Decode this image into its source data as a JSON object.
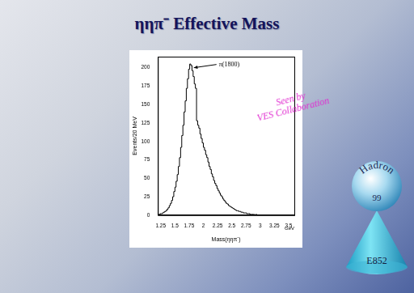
{
  "chart_data": {
    "type": "histogram",
    "title": "ηηπ⁻ Effective Mass",
    "x_label": "Mass(ηηπ⁻)",
    "x_unit": "GeV",
    "y_label": "Events/20 MeV",
    "bins": [
      1.2,
      1.22,
      1.24,
      1.26,
      1.28,
      1.3,
      1.32,
      1.34,
      1.36,
      1.38,
      1.4,
      1.42,
      1.44,
      1.46,
      1.48,
      1.5,
      1.52,
      1.54,
      1.56,
      1.58,
      1.6,
      1.62,
      1.64,
      1.66,
      1.68,
      1.7,
      1.72,
      1.74,
      1.76,
      1.78,
      1.8,
      1.82,
      1.84,
      1.86,
      1.88,
      1.9,
      1.92,
      1.94,
      1.96,
      1.98,
      2,
      2.02,
      2.04,
      2.06,
      2.08,
      2.1,
      2.12,
      2.14,
      2.16,
      2.18,
      2.2,
      2.22,
      2.24,
      2.26,
      2.28,
      2.3,
      2.32,
      2.34,
      2.36,
      2.38,
      2.4,
      2.42,
      2.44,
      2.46,
      2.48,
      2.5,
      2.52,
      2.54,
      2.56,
      2.58,
      2.6,
      2.62,
      2.64,
      2.66,
      2.68,
      2.7,
      2.72,
      2.74,
      2.76,
      2.78,
      2.8,
      2.82,
      2.84,
      2.86,
      2.88,
      2.9,
      2.92,
      2.94,
      2.96,
      2.98,
      3
    ],
    "values": [
      0,
      1,
      1,
      2,
      2,
      3,
      4,
      5,
      6,
      8,
      10,
      13,
      16,
      20,
      25,
      32,
      38,
      46,
      55,
      66,
      78,
      92,
      108,
      122,
      140,
      155,
      172,
      185,
      198,
      205,
      203,
      196,
      188,
      178,
      172,
      128,
      122,
      118,
      110,
      104,
      98,
      92,
      88,
      82,
      78,
      72,
      66,
      62,
      56,
      52,
      47,
      43,
      40,
      36,
      33,
      30,
      27,
      25,
      22,
      20,
      18,
      16,
      15,
      13,
      12,
      11,
      10,
      9,
      8,
      7,
      6,
      6,
      5,
      5,
      4,
      4,
      3,
      3,
      3,
      2,
      2,
      2,
      1,
      1,
      1,
      1,
      0,
      1,
      0,
      0
    ],
    "color": "#000000",
    "xlim": [
      1.2,
      3.6
    ],
    "xticks": [
      1.25,
      1.5,
      1.75,
      2,
      2.25,
      2.5,
      2.75,
      3,
      3.25,
      3.5
    ],
    "ylim": [
      0,
      215
    ],
    "yticks": [
      0,
      25,
      50,
      75,
      100,
      125,
      150,
      175,
      200
    ],
    "grid": false,
    "annotations": [
      {
        "text": "π(1800)",
        "x": 1.79,
        "y": 200
      }
    ]
  },
  "slide": {
    "note": [
      "Seen by",
      "VES Collaboration"
    ],
    "logo": {
      "sphere": [
        "Hadron",
        "99"
      ],
      "cone": "E852"
    }
  }
}
